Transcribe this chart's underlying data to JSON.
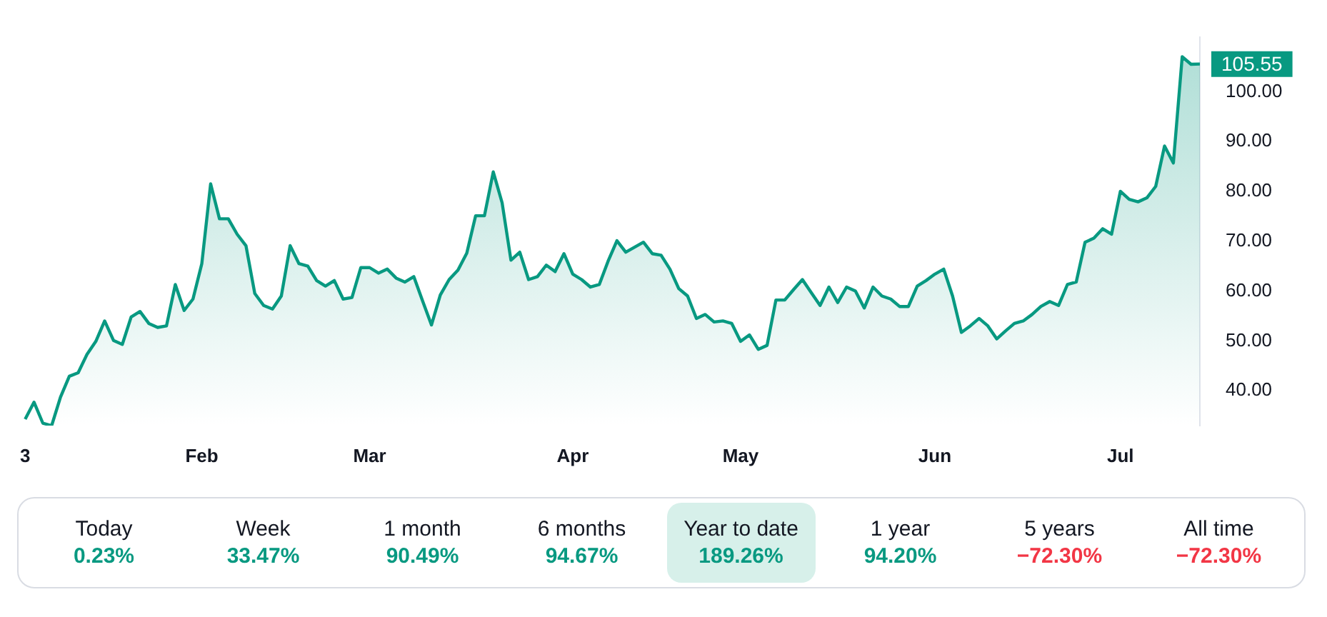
{
  "chart_data": {
    "type": "area",
    "categories": [
      "3",
      null,
      null,
      null,
      null,
      null,
      null,
      null,
      null,
      null,
      null,
      null,
      null,
      null,
      null,
      null,
      null,
      null,
      null,
      null,
      "Feb",
      null,
      null,
      null,
      null,
      null,
      null,
      null,
      null,
      null,
      null,
      null,
      null,
      null,
      null,
      null,
      null,
      null,
      null,
      "Mar",
      null,
      null,
      null,
      null,
      null,
      null,
      null,
      null,
      null,
      null,
      null,
      null,
      null,
      null,
      null,
      null,
      null,
      null,
      null,
      null,
      null,
      null,
      "Apr",
      null,
      null,
      null,
      null,
      null,
      null,
      null,
      null,
      null,
      null,
      null,
      null,
      null,
      null,
      null,
      null,
      null,
      null,
      "May",
      null,
      null,
      null,
      null,
      null,
      null,
      null,
      null,
      null,
      null,
      null,
      null,
      null,
      null,
      null,
      null,
      null,
      null,
      null,
      null,
      null,
      "Jun",
      null,
      null,
      null,
      null,
      null,
      null,
      null,
      null,
      null,
      null,
      null,
      null,
      null,
      null,
      null,
      null,
      null,
      null,
      null,
      null,
      "Jul",
      null,
      null,
      null,
      null,
      null,
      null,
      null,
      null,
      null
    ],
    "series": [
      {
        "color": "#089981",
        "values": [
          34.3,
          37.7,
          33.5,
          33.0,
          38.7,
          42.9,
          43.6,
          47.3,
          49.9,
          54.0,
          50.1,
          49.3,
          54.8,
          55.9,
          53.5,
          52.7,
          53.0,
          61.3,
          56.1,
          58.4,
          65.5,
          81.5,
          74.5,
          74.5,
          71.4,
          69.1,
          59.5,
          57.1,
          56.4,
          59.0,
          69.1,
          65.5,
          65.0,
          62.1,
          61.0,
          62.1,
          58.4,
          58.7,
          64.7,
          64.7,
          63.6,
          64.4,
          62.6,
          61.8,
          62.9,
          58.0,
          53.2,
          59.2,
          62.3,
          64.2,
          67.6,
          75.1,
          75.1,
          83.9,
          77.7,
          66.2,
          67.8,
          62.3,
          62.9,
          65.2,
          63.9,
          67.5,
          63.4,
          62.3,
          60.8,
          61.3,
          66.0,
          70.1,
          67.8,
          68.8,
          69.8,
          67.5,
          67.2,
          64.4,
          60.5,
          59.0,
          54.5,
          55.3,
          53.8,
          54.0,
          53.5,
          49.9,
          51.2,
          48.3,
          49.1,
          58.2,
          58.2,
          60.3,
          62.3,
          59.7,
          57.1,
          60.8,
          57.7,
          60.8,
          60.0,
          56.6,
          60.8,
          59.0,
          58.4,
          56.9,
          56.9,
          61.0,
          62.1,
          63.4,
          64.4,
          59.0,
          51.7,
          53.0,
          54.5,
          53.0,
          50.4,
          52.0,
          53.5,
          54.0,
          55.3,
          56.9,
          57.9,
          57.1,
          61.3,
          61.8,
          69.8,
          70.6,
          72.5,
          71.4,
          80.0,
          78.4,
          77.9,
          78.7,
          81.0,
          89.1,
          85.7,
          107.0,
          105.5,
          105.55
        ]
      }
    ],
    "ylim": [
      33,
      111
    ],
    "yticks": [
      {
        "value": 40,
        "label": "40.00"
      },
      {
        "value": 50,
        "label": "50.00"
      },
      {
        "value": 60,
        "label": "60.00"
      },
      {
        "value": 70,
        "label": "70.00"
      },
      {
        "value": 80,
        "label": "80.00"
      },
      {
        "value": 90,
        "label": "90.00"
      },
      {
        "value": 100,
        "label": "100.00"
      }
    ],
    "grid": false,
    "legend": false,
    "marker": "none",
    "line_style": "solid",
    "annotations": [
      "105.55",
      "Today",
      "0.23%",
      "Week",
      "33.47%",
      "1 month",
      "90.49%",
      "6 months",
      "94.67%",
      "Year to date",
      "189.26%",
      "1 year",
      "94.20%",
      "5 years",
      "−72.30%",
      "All time",
      "−72.30%"
    ]
  }
}
